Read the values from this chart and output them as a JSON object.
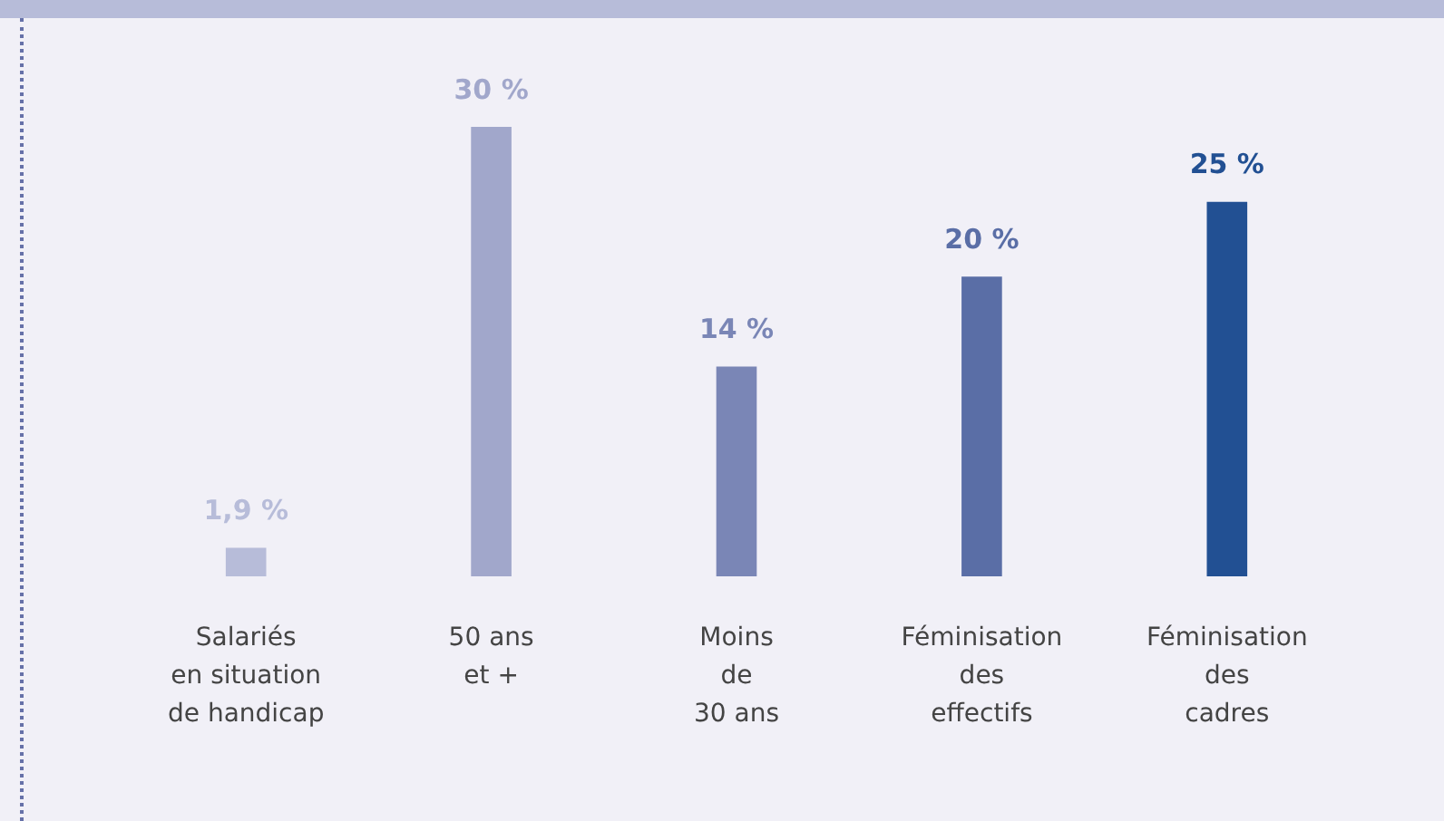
{
  "chart_data": {
    "type": "bar",
    "categories": [
      "Salariés\nen situation\nde handicap",
      "50 ans\net +",
      "Moins\nde\n30 ans",
      "Féminisation\ndes\neffectifs",
      "Féminisation\ndes\ncadres"
    ],
    "values": [
      1.9,
      30,
      14,
      20,
      25
    ],
    "colors": [
      "#b7bcd9",
      "#a1a7cb",
      "#7a86b6",
      "#5a6ea6",
      "#225093"
    ],
    "value_labels": [
      "1,9 %",
      "30 %",
      "14 %",
      "20 %",
      "25 %"
    ],
    "grid": false,
    "legend": false
  }
}
